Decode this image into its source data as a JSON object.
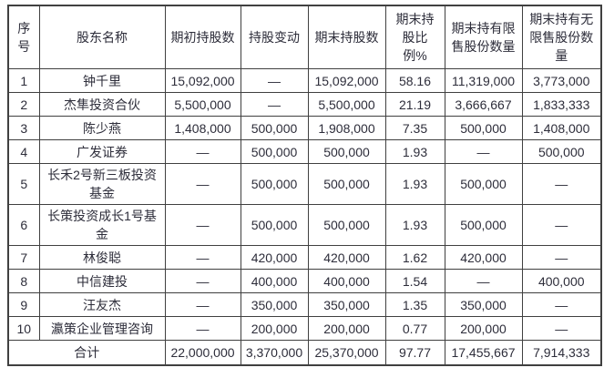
{
  "table": {
    "columns": [
      "序号",
      "股东名称",
      "期初持股数",
      "持股变动",
      "期末持股数",
      "期末持股比例%",
      "期末持有限售股份数量",
      "期末持有无限售股份数量"
    ],
    "rows": [
      [
        "1",
        "钟千里",
        "15,092,000",
        "—",
        "15,092,000",
        "58.16",
        "11,319,000",
        "3,773,000"
      ],
      [
        "2",
        "杰隼投资合伙",
        "5,500,000",
        "—",
        "5,500,000",
        "21.19",
        "3,666,667",
        "1,833,333"
      ],
      [
        "3",
        "陈少燕",
        "1,408,000",
        "500,000",
        "1,908,000",
        "7.35",
        "500,000",
        "1,408,000"
      ],
      [
        "4",
        "广发证券",
        "—",
        "500,000",
        "500,000",
        "1.93",
        "—",
        "500,000"
      ],
      [
        "5",
        "长禾2号新三板投资基金",
        "—",
        "500,000",
        "500,000",
        "1.93",
        "500,000",
        "—"
      ],
      [
        "6",
        "长策投资成长1号基金",
        "—",
        "500,000",
        "500,000",
        "1.93",
        "500,000",
        "—"
      ],
      [
        "7",
        "林俊聪",
        "—",
        "420,000",
        "420,000",
        "1.62",
        "420,000",
        "—"
      ],
      [
        "8",
        "中信建投",
        "—",
        "400,000",
        "400,000",
        "1.54",
        "—",
        "400,000"
      ],
      [
        "9",
        "汪友杰",
        "—",
        "350,000",
        "350,000",
        "1.35",
        "350,000",
        "—"
      ],
      [
        "10",
        "瀛策企业管理咨询",
        "—",
        "200,000",
        "200,000",
        "0.77",
        "200,000",
        "—"
      ]
    ],
    "total": [
      "合计",
      "22,000,000",
      "3,370,000",
      "25,370,000",
      "97.77",
      "17,455,667",
      "7,914,333"
    ],
    "colors": {
      "text": "#2d2d3a",
      "border": "#404040",
      "background": "#ffffff"
    }
  }
}
